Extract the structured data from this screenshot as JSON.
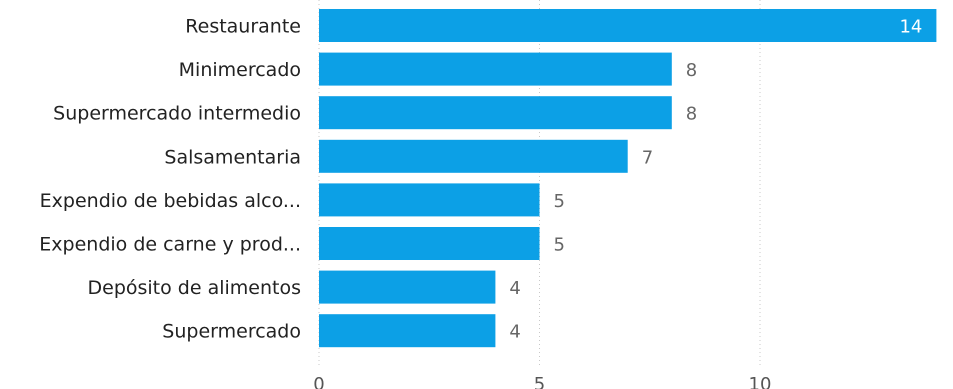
{
  "chart_data": {
    "type": "bar",
    "orientation": "horizontal",
    "categories": [
      "Restaurante",
      "Minimercado",
      "Supermercado intermedio",
      "Salsamentaria",
      "Expendio de bebidas alco...",
      "Expendio de carne y prod...",
      "Depósito de alimentos",
      "Supermercado"
    ],
    "values": [
      14,
      8,
      8,
      7,
      5,
      5,
      4,
      4
    ],
    "xticks": [
      0,
      5,
      10
    ],
    "xlim": [
      0,
      14
    ],
    "grid": true,
    "bar_color": "#0ca0e6",
    "title": "",
    "xlabel": "",
    "ylabel": ""
  }
}
